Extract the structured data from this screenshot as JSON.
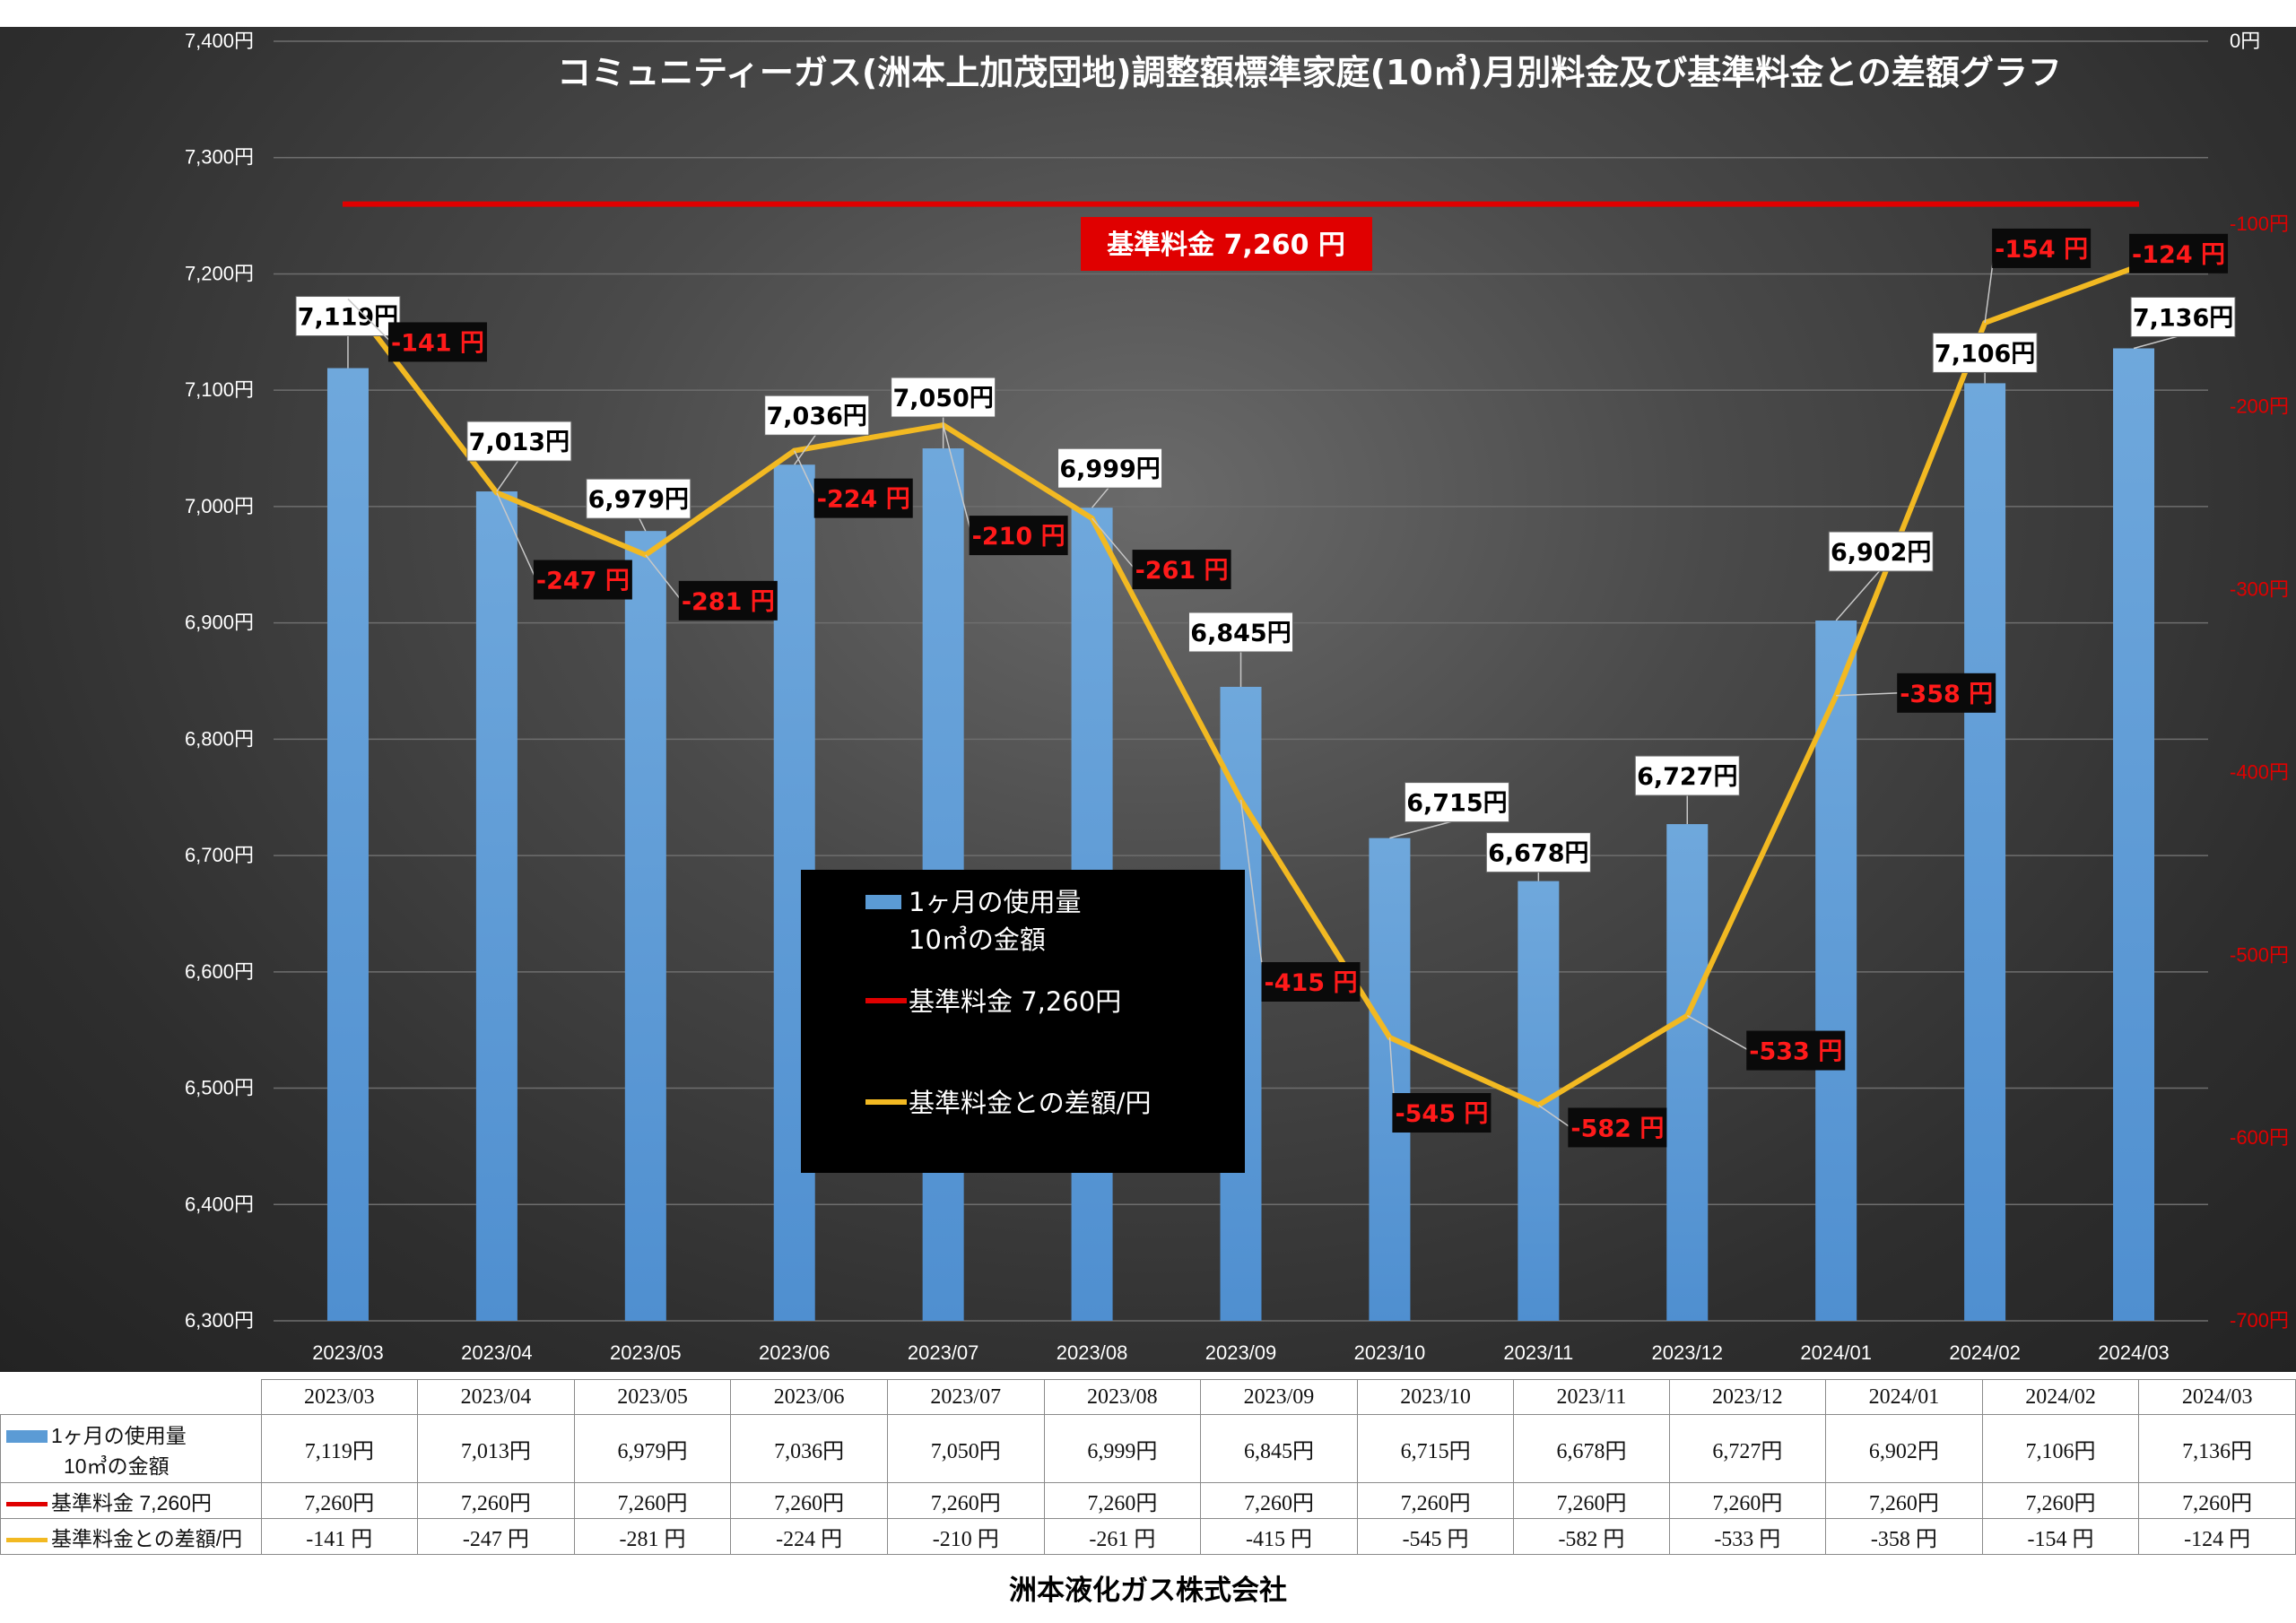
{
  "chart_data": {
    "type": "bar+line",
    "title": "コミュニティーガス(洲本上加茂団地)調整額標準家庭(10㎥)月別料金及び基準料金との差額グラフ",
    "categories": [
      "2023/03",
      "2023/04",
      "2023/05",
      "2023/06",
      "2023/07",
      "2023/08",
      "2023/09",
      "2023/10",
      "2023/11",
      "2023/12",
      "2024/01",
      "2024/02",
      "2024/03"
    ],
    "y_left": {
      "range": [
        6300,
        7400
      ],
      "step": 100,
      "tick_labels": [
        "6,300円",
        "6,400円",
        "6,500円",
        "6,600円",
        "6,700円",
        "6,800円",
        "6,900円",
        "7,000円",
        "7,100円",
        "7,200円",
        "7,300円",
        "7,400円"
      ]
    },
    "y_right": {
      "range": [
        -700,
        0
      ],
      "step": 100,
      "tick_labels": [
        "-700円",
        "-600円",
        "-500円",
        "-400円",
        "-300円",
        "-200円",
        "-100円",
        "0円"
      ]
    },
    "series": [
      {
        "name": "1ヶ月の使用量 10㎥の金額",
        "type": "bar",
        "axis": "left",
        "color": "#5b9bd5",
        "values": [
          7119,
          7013,
          6979,
          7036,
          7050,
          6999,
          6845,
          6715,
          6678,
          6727,
          6902,
          7106,
          7136
        ],
        "labels": [
          "7,119円",
          "7,013円",
          "6,979円",
          "7,036円",
          "7,050円",
          "6,999円",
          "6,845円",
          "6,715円",
          "6,678円",
          "6,727円",
          "6,902円",
          "7,106円",
          "7,136円"
        ]
      },
      {
        "name": "基準料金 7,260円",
        "type": "line",
        "axis": "left",
        "color": "#e00000",
        "values": [
          7260,
          7260,
          7260,
          7260,
          7260,
          7260,
          7260,
          7260,
          7260,
          7260,
          7260,
          7260,
          7260
        ]
      },
      {
        "name": "基準料金との差額/円",
        "type": "line",
        "axis": "right",
        "color": "#f2b922",
        "values": [
          -141,
          -247,
          -281,
          -224,
          -210,
          -261,
          -415,
          -545,
          -582,
          -533,
          -358,
          -154,
          -124
        ],
        "labels": [
          "-141 円",
          "-247 円",
          "-281 円",
          "-224 円",
          "-210 円",
          "-261 円",
          "-415 円",
          "-545 円",
          "-582 円",
          "-533 円",
          "-358 円",
          "-154 円",
          "-124 円"
        ]
      }
    ],
    "base_label": "基準料金  7,260  円",
    "legend": [
      "1ヶ月の使用量",
      "10㎥の金額",
      "基準料金 7,260円",
      "基準料金との差額/円"
    ],
    "grid": true,
    "legend_placement": "center"
  },
  "table": {
    "rows": [
      {
        "label_lines": [
          "1ヶ月の使用量",
          "10㎥の金額"
        ],
        "key_color": "#5b9bd5",
        "key": "bar",
        "cells": [
          "7,119円",
          "7,013円",
          "6,979円",
          "7,036円",
          "7,050円",
          "6,999円",
          "6,845円",
          "6,715円",
          "6,678円",
          "6,727円",
          "6,902円",
          "7,106円",
          "7,136円"
        ]
      },
      {
        "label_lines": [
          "基準料金  7,260円"
        ],
        "key_color": "#e00000",
        "key": "line",
        "cells": [
          "7,260円",
          "7,260円",
          "7,260円",
          "7,260円",
          "7,260円",
          "7,260円",
          "7,260円",
          "7,260円",
          "7,260円",
          "7,260円",
          "7,260円",
          "7,260円",
          "7,260円"
        ]
      },
      {
        "label_lines": [
          "基準料金との差額/円"
        ],
        "key_color": "#f2b922",
        "key": "line",
        "cells": [
          "-141 円",
          "-247 円",
          "-281 円",
          "-224 円",
          "-210 円",
          "-261 円",
          "-415 円",
          "-545 円",
          "-582 円",
          "-533 円",
          "-358 円",
          "-154 円",
          "-124 円"
        ]
      }
    ]
  },
  "footer": "洲本液化ガス株式会社"
}
